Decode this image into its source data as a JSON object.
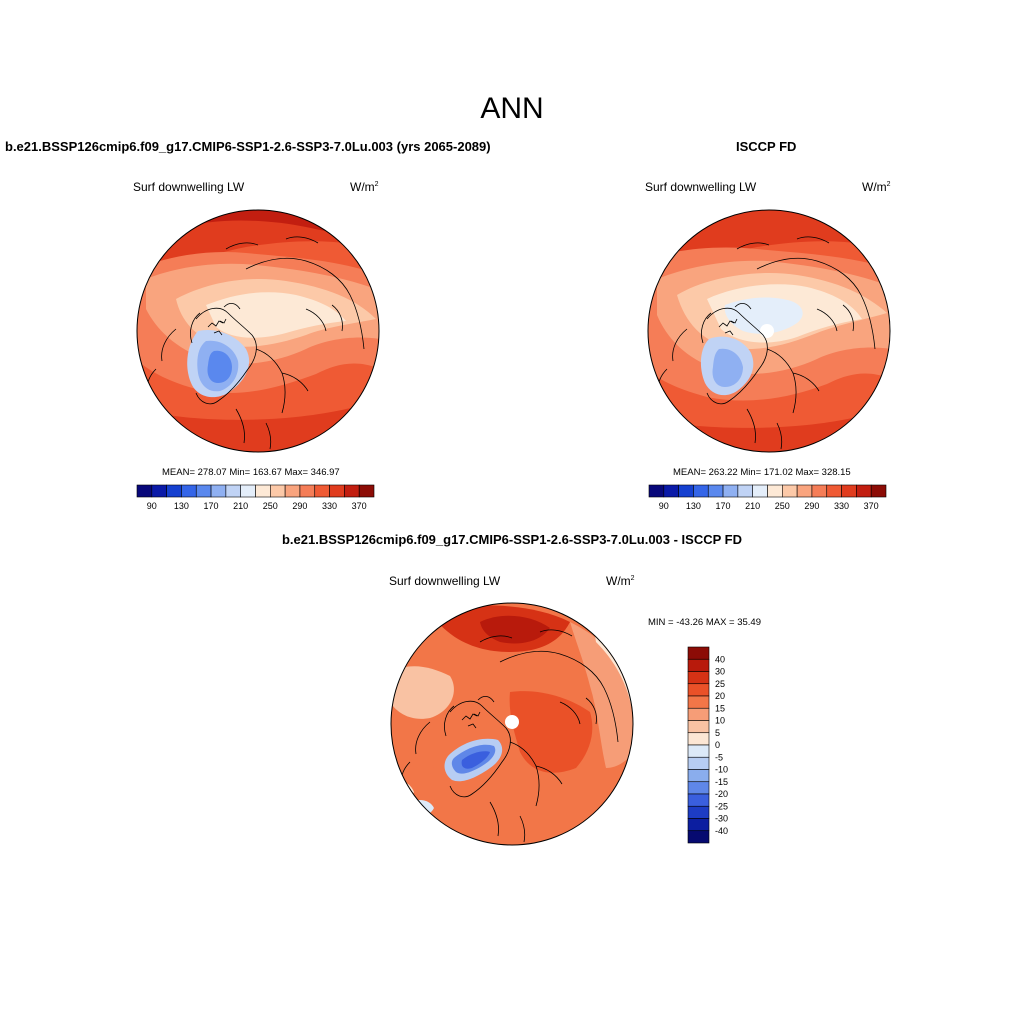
{
  "page": {
    "title": "ANN",
    "diff_title": "b.e21.BSSP126cmip6.f09_g17.CMIP6-SSP1-2.6-SSP3-7.0Lu.003 - ISCCP FD"
  },
  "panels": [
    {
      "id": "model",
      "title": "b.e21.BSSP126cmip6.f09_g17.CMIP6-SSP1-2.6-SSP3-7.0Lu.003 (yrs 2065-2089)",
      "variable": "Surf downwelling LW",
      "units_base": "W/m",
      "units_exp": "2",
      "stats": "MEAN= 278.07  Min= 163.67  Max= 346.97"
    },
    {
      "id": "obs",
      "title": "ISCCP FD",
      "variable": "Surf downwelling LW",
      "units_base": "W/m",
      "units_exp": "2",
      "stats": "MEAN= 263.22  Min= 171.02  Max= 328.15"
    },
    {
      "id": "diff",
      "variable": "Surf downwelling LW",
      "units_base": "W/m",
      "units_exp": "2",
      "stats": "MIN = -43.26 MAX =  35.49"
    }
  ],
  "colorbar_abs": {
    "tick_labels": [
      "90",
      "130",
      "170",
      "210",
      "250",
      "290",
      "330",
      "370"
    ],
    "colors": [
      "#08087a",
      "#0a1aa8",
      "#1540d0",
      "#3465e8",
      "#5a88ee",
      "#8fb0f2",
      "#c0d3f5",
      "#e4eefa",
      "#fde9d6",
      "#fcc9a8",
      "#f9a47e",
      "#f57d57",
      "#ef5a34",
      "#e03c1e",
      "#c21e10",
      "#8c0c06"
    ]
  },
  "colorbar_diff": {
    "tick_labels": [
      "40",
      "30",
      "25",
      "20",
      "15",
      "10",
      "5",
      "0",
      "-5",
      "-10",
      "-15",
      "-20",
      "-25",
      "-30",
      "-40"
    ],
    "colors": [
      "#8c0c06",
      "#b81a0c",
      "#d63215",
      "#ea5128",
      "#f27648",
      "#f69d77",
      "#f9c2a3",
      "#fce6d4",
      "#dce9f8",
      "#b7cdf3",
      "#8aaded",
      "#5f87e8",
      "#3a5fde",
      "#1d3cc4",
      "#0c1ea0",
      "#060a70"
    ]
  }
}
